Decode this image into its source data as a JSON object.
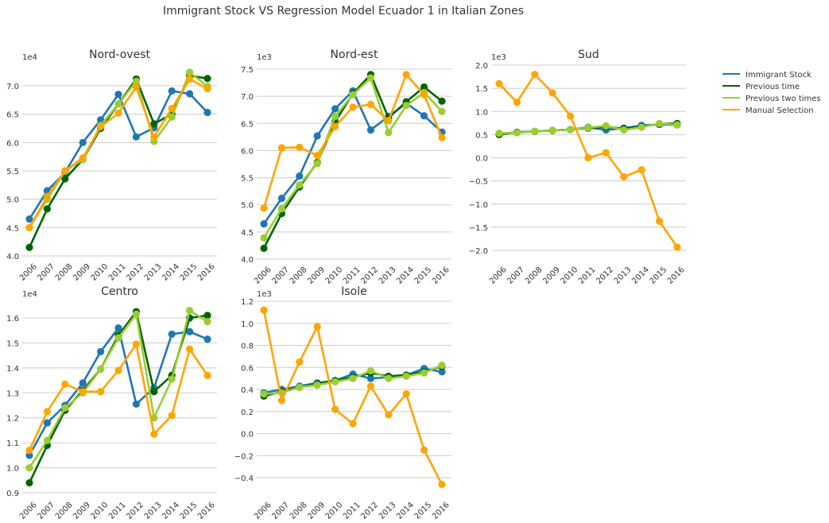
{
  "suptitle": "Immigrant Stock VS Regression Model Ecuador 1 in Italian Zones",
  "legend": {
    "position": "right",
    "entries": [
      {
        "label": "Immigrant Stock",
        "color": "#1f77b4"
      },
      {
        "label": "Previous time",
        "color": "#006400"
      },
      {
        "label": "Previous two times",
        "color": "#9acd32"
      },
      {
        "label": "Manual Selection",
        "color": "#ffa500"
      }
    ]
  },
  "chart_data": [
    {
      "type": "line",
      "title": "Nord-ovest",
      "scale_label": "1e4",
      "x": [
        "2006",
        "2007",
        "2008",
        "2009",
        "2010",
        "2011",
        "2012",
        "2013",
        "2014",
        "2015",
        "2016"
      ],
      "ylim": [
        3.95,
        7.35
      ],
      "yticks": [
        4.0,
        4.5,
        5.0,
        5.5,
        6.0,
        6.5,
        7.0
      ],
      "ytick_labels": [
        "4.0",
        "4.5",
        "5.0",
        "5.5",
        "6.0",
        "6.5",
        "7.0"
      ],
      "series": [
        {
          "name": "Immigrant Stock",
          "color": "#1f77b4",
          "values": [
            4.65,
            5.15,
            5.47,
            6.0,
            6.4,
            6.85,
            6.1,
            6.26,
            6.91,
            6.86,
            6.53
          ]
        },
        {
          "name": "Previous time",
          "color": "#006400",
          "values": [
            4.15,
            4.83,
            5.36,
            5.7,
            6.25,
            6.68,
            7.12,
            6.33,
            6.5,
            7.18,
            7.13
          ]
        },
        {
          "name": "Previous two times",
          "color": "#9acd32",
          "values": [
            4.5,
            5.0,
            5.5,
            5.7,
            6.3,
            6.68,
            7.08,
            6.02,
            6.45,
            7.24,
            6.99
          ]
        },
        {
          "name": "Manual Selection",
          "color": "#ffa500",
          "values": [
            4.5,
            5.05,
            5.5,
            5.73,
            6.28,
            6.52,
            6.98,
            6.1,
            6.6,
            7.12,
            6.95
          ]
        }
      ]
    },
    {
      "type": "line",
      "title": "Nord-est",
      "scale_label": "1e3",
      "x": [
        "2006",
        "2007",
        "2008",
        "2009",
        "2010",
        "2011",
        "2012",
        "2013",
        "2014",
        "2015",
        "2016"
      ],
      "ylim": [
        4.0,
        7.5
      ],
      "yticks": [
        4.0,
        4.5,
        5.0,
        5.5,
        6.0,
        6.5,
        7.0,
        7.5
      ],
      "ytick_labels": [
        "4.0",
        "4.5",
        "5.0",
        "5.5",
        "6.0",
        "6.5",
        "7.0",
        "7.5"
      ],
      "series": [
        {
          "name": "Immigrant Stock",
          "color": "#1f77b4",
          "values": [
            4.65,
            5.12,
            5.53,
            6.27,
            6.77,
            7.1,
            6.38,
            6.63,
            6.87,
            6.64,
            6.34
          ]
        },
        {
          "name": "Previous time",
          "color": "#006400",
          "values": [
            4.2,
            4.84,
            5.33,
            5.78,
            6.53,
            7.05,
            7.4,
            6.6,
            6.9,
            7.17,
            6.91
          ]
        },
        {
          "name": "Previous two times",
          "color": "#9acd32",
          "values": [
            4.39,
            4.93,
            5.37,
            5.76,
            6.63,
            7.03,
            7.34,
            6.33,
            6.83,
            7.07,
            6.72
          ]
        },
        {
          "name": "Manual Selection",
          "color": "#ffa500",
          "values": [
            4.94,
            6.05,
            6.06,
            5.91,
            6.44,
            6.8,
            6.85,
            6.55,
            7.4,
            7.03,
            6.24
          ]
        }
      ]
    },
    {
      "type": "line",
      "title": "Sud",
      "scale_label": "1e3",
      "x": [
        "2006",
        "2007",
        "2008",
        "2009",
        "2010",
        "2011",
        "2012",
        "2013",
        "2014",
        "2015",
        "2016"
      ],
      "ylim": [
        -2.2,
        2.0
      ],
      "yticks": [
        -2.0,
        -1.5,
        -1.0,
        -0.5,
        0.0,
        0.5,
        1.0,
        1.5,
        2.0
      ],
      "ytick_labels": [
        "−2.0",
        "−1.5",
        "−1.0",
        "−0.5",
        "0.0",
        "0.5",
        "1.0",
        "1.5",
        "2.0"
      ],
      "series": [
        {
          "name": "Immigrant Stock",
          "color": "#1f77b4",
          "values": [
            0.52,
            0.55,
            0.57,
            0.59,
            0.61,
            0.66,
            0.6,
            0.64,
            0.7,
            0.72,
            0.71
          ]
        },
        {
          "name": "Previous time",
          "color": "#006400",
          "values": [
            0.5,
            0.55,
            0.57,
            0.59,
            0.61,
            0.64,
            0.67,
            0.63,
            0.67,
            0.73,
            0.74
          ]
        },
        {
          "name": "Previous two times",
          "color": "#9acd32",
          "values": [
            0.53,
            0.54,
            0.57,
            0.59,
            0.61,
            0.65,
            0.69,
            0.6,
            0.66,
            0.74,
            0.71
          ]
        },
        {
          "name": "Manual Selection",
          "color": "#ffa500",
          "values": [
            1.6,
            1.2,
            1.8,
            1.4,
            0.9,
            0.0,
            0.11,
            -0.41,
            -0.26,
            -1.37,
            -1.93
          ]
        }
      ]
    },
    {
      "type": "line",
      "title": "Centro",
      "scale_label": "1e4",
      "x": [
        "2006",
        "2007",
        "2008",
        "2009",
        "2010",
        "2011",
        "2012",
        "2013",
        "2014",
        "2015",
        "2016"
      ],
      "ylim": [
        0.9,
        1.66
      ],
      "yticks": [
        0.9,
        1.0,
        1.1,
        1.2,
        1.3,
        1.4,
        1.5,
        1.6
      ],
      "ytick_labels": [
        "0.9",
        "1.0",
        "1.1",
        "1.2",
        "1.3",
        "1.4",
        "1.5",
        "1.6"
      ],
      "series": [
        {
          "name": "Immigrant Stock",
          "color": "#1f77b4",
          "values": [
            1.05,
            1.18,
            1.25,
            1.34,
            1.465,
            1.56,
            1.255,
            1.32,
            1.535,
            1.545,
            1.515
          ]
        },
        {
          "name": "Previous time",
          "color": "#006400",
          "values": [
            0.94,
            1.09,
            1.23,
            1.31,
            1.395,
            1.53,
            1.625,
            1.305,
            1.37,
            1.6,
            1.61
          ]
        },
        {
          "name": "Previous two times",
          "color": "#9acd32",
          "values": [
            1.0,
            1.11,
            1.24,
            1.3,
            1.395,
            1.52,
            1.615,
            1.2,
            1.355,
            1.63,
            1.585
          ]
        },
        {
          "name": "Manual Selection",
          "color": "#ffa500",
          "values": [
            1.07,
            1.225,
            1.335,
            1.305,
            1.305,
            1.39,
            1.495,
            1.135,
            1.21,
            1.475,
            1.37
          ]
        }
      ]
    },
    {
      "type": "line",
      "title": "Isole",
      "scale_label": "1e3",
      "x": [
        "2006",
        "2007",
        "2008",
        "2009",
        "2010",
        "2011",
        "2012",
        "2013",
        "2014",
        "2015",
        "2016"
      ],
      "ylim": [
        -0.55,
        1.2
      ],
      "yticks": [
        -0.4,
        -0.2,
        0.0,
        0.2,
        0.4,
        0.6,
        0.8,
        1.0,
        1.2
      ],
      "ytick_labels": [
        "−0.4",
        "−0.2",
        "0.0",
        "0.2",
        "0.4",
        "0.6",
        "0.8",
        "1.0",
        "1.2"
      ],
      "series": [
        {
          "name": "Immigrant Stock",
          "color": "#1f77b4",
          "values": [
            0.37,
            0.4,
            0.43,
            0.46,
            0.48,
            0.54,
            0.5,
            0.51,
            0.53,
            0.59,
            0.56
          ]
        },
        {
          "name": "Previous time",
          "color": "#006400",
          "values": [
            0.34,
            0.38,
            0.42,
            0.45,
            0.48,
            0.51,
            0.55,
            0.52,
            0.53,
            0.56,
            0.61
          ]
        },
        {
          "name": "Previous two times",
          "color": "#9acd32",
          "values": [
            0.36,
            0.37,
            0.42,
            0.44,
            0.47,
            0.5,
            0.57,
            0.5,
            0.52,
            0.55,
            0.62
          ]
        },
        {
          "name": "Manual Selection",
          "color": "#ffa500",
          "values": [
            1.12,
            0.3,
            0.65,
            0.97,
            0.22,
            0.09,
            0.43,
            0.17,
            0.36,
            -0.15,
            -0.46
          ]
        }
      ]
    }
  ]
}
